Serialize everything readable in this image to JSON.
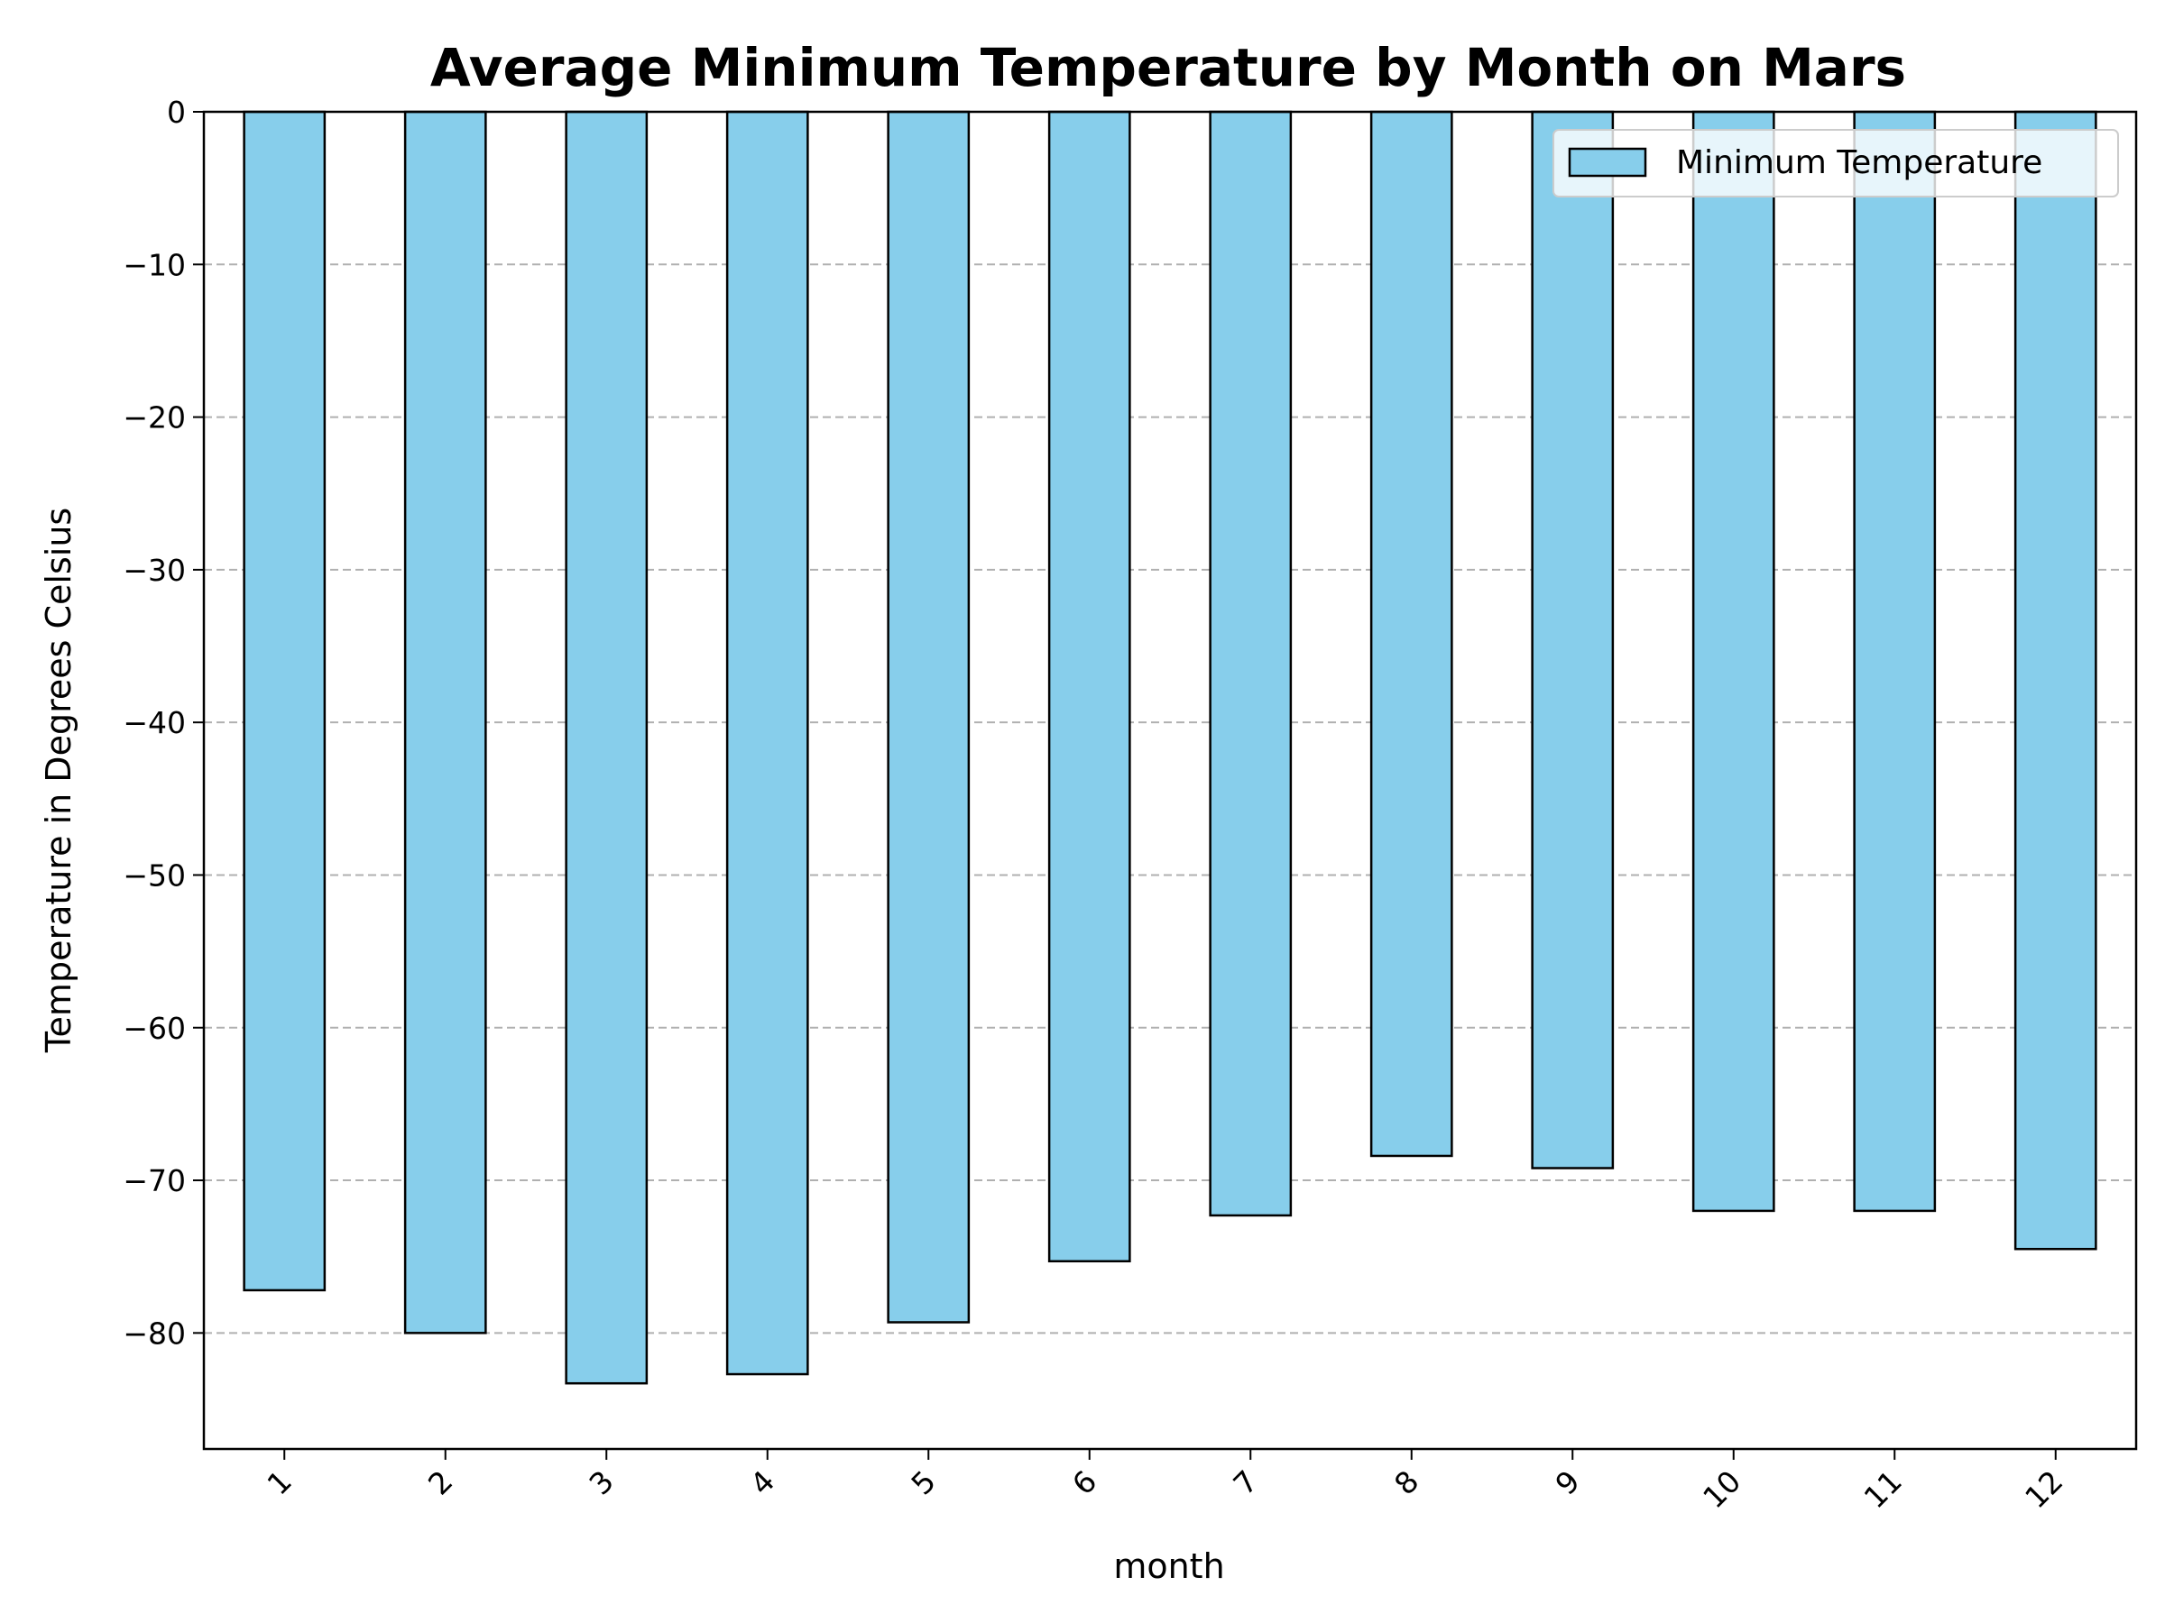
{
  "chart_data": {
    "type": "bar",
    "title": "Average Minimum Temperature by Month on Mars",
    "xlabel": "month",
    "ylabel": "Temperature in Degrees Celsius",
    "categories": [
      "1",
      "2",
      "3",
      "4",
      "5",
      "6",
      "7",
      "8",
      "9",
      "10",
      "11",
      "12"
    ],
    "series": [
      {
        "name": "Minimum Temperature",
        "values": [
          -77.2,
          -80.0,
          -83.3,
          -82.7,
          -79.3,
          -75.3,
          -72.3,
          -68.4,
          -69.2,
          -72.0,
          -72.0,
          -74.5
        ]
      }
    ],
    "ylim": [
      -87.6,
      0
    ],
    "yticks": [
      0,
      -10,
      -20,
      -30,
      -40,
      -50,
      -60,
      -70,
      -80
    ],
    "ytick_labels": [
      "0",
      "−10",
      "−20",
      "−30",
      "−40",
      "−50",
      "−60",
      "−70",
      "−80"
    ],
    "grid": "y-dashed",
    "legend_position": "top-right",
    "colors": {
      "bar_fill": "#87ceeb",
      "bar_edge": "#000000",
      "grid": "#b0b0b0"
    }
  }
}
